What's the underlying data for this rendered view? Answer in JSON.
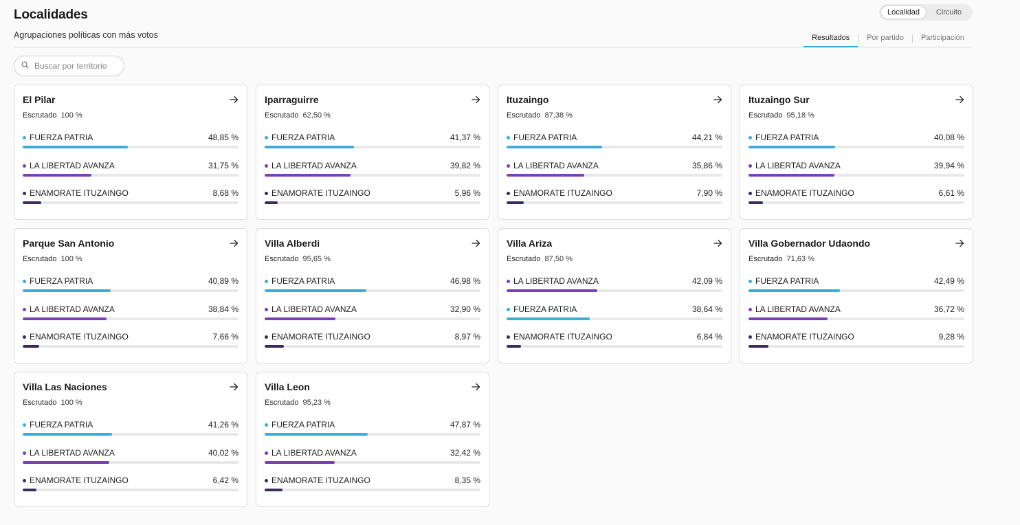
{
  "header": {
    "title": "Localidades",
    "subtitle": "Agrupaciones políticas con más votos",
    "toggle": [
      {
        "label": "Localidad",
        "active": true
      },
      {
        "label": "Circuito",
        "active": false
      }
    ],
    "tabs": [
      {
        "label": "Resultados",
        "active": true
      },
      {
        "label": "Por partido",
        "active": false
      },
      {
        "label": "Participación",
        "active": false
      }
    ]
  },
  "search": {
    "placeholder": "Buscar por territorio",
    "icon": "search-icon"
  },
  "scrutinized_label": "Escrutado",
  "party_colors": {
    "FUERZA PATRIA": "#3aaed8",
    "LA LIBERTAD AVANZA": "#7b3fb8",
    "ENAMORATE ITUZAINGO": "#3c2a5c"
  },
  "cards": [
    {
      "name": "El Pilar",
      "scrutinized": "100 %",
      "parties": [
        {
          "name": "FUERZA PATRIA",
          "pct": "48,85 %",
          "value": 48.85
        },
        {
          "name": "LA LIBERTAD AVANZA",
          "pct": "31,75 %",
          "value": 31.75
        },
        {
          "name": "ENAMORATE ITUZAINGO",
          "pct": "8,68 %",
          "value": 8.68
        }
      ]
    },
    {
      "name": "Iparraguirre",
      "scrutinized": "62,50 %",
      "parties": [
        {
          "name": "FUERZA PATRIA",
          "pct": "41,37 %",
          "value": 41.37
        },
        {
          "name": "LA LIBERTAD AVANZA",
          "pct": "39,82 %",
          "value": 39.82
        },
        {
          "name": "ENAMORATE ITUZAINGO",
          "pct": "5,96 %",
          "value": 5.96
        }
      ]
    },
    {
      "name": "Ituzaingo",
      "scrutinized": "87,38 %",
      "parties": [
        {
          "name": "FUERZA PATRIA",
          "pct": "44,21 %",
          "value": 44.21
        },
        {
          "name": "LA LIBERTAD AVANZA",
          "pct": "35,86 %",
          "value": 35.86
        },
        {
          "name": "ENAMORATE ITUZAINGO",
          "pct": "7,90 %",
          "value": 7.9
        }
      ]
    },
    {
      "name": "Ituzaingo Sur",
      "scrutinized": "95,18 %",
      "parties": [
        {
          "name": "FUERZA PATRIA",
          "pct": "40,08 %",
          "value": 40.08
        },
        {
          "name": "LA LIBERTAD AVANZA",
          "pct": "39,94 %",
          "value": 39.94
        },
        {
          "name": "ENAMORATE ITUZAINGO",
          "pct": "6,61 %",
          "value": 6.61
        }
      ]
    },
    {
      "name": "Parque San Antonio",
      "scrutinized": "100 %",
      "parties": [
        {
          "name": "FUERZA PATRIA",
          "pct": "40,89 %",
          "value": 40.89
        },
        {
          "name": "LA LIBERTAD AVANZA",
          "pct": "38,84 %",
          "value": 38.84
        },
        {
          "name": "ENAMORATE ITUZAINGO",
          "pct": "7,66 %",
          "value": 7.66
        }
      ]
    },
    {
      "name": "Villa Alberdi",
      "scrutinized": "95,65 %",
      "parties": [
        {
          "name": "FUERZA PATRIA",
          "pct": "46,98 %",
          "value": 46.98
        },
        {
          "name": "LA LIBERTAD AVANZA",
          "pct": "32,90 %",
          "value": 32.9
        },
        {
          "name": "ENAMORATE ITUZAINGO",
          "pct": "8,97 %",
          "value": 8.97
        }
      ]
    },
    {
      "name": "Villa Ariza",
      "scrutinized": "87,50 %",
      "parties": [
        {
          "name": "LA LIBERTAD AVANZA",
          "pct": "42,09 %",
          "value": 42.09
        },
        {
          "name": "FUERZA PATRIA",
          "pct": "38,64 %",
          "value": 38.64
        },
        {
          "name": "ENAMORATE ITUZAINGO",
          "pct": "6,84 %",
          "value": 6.84
        }
      ]
    },
    {
      "name": "Villa Gobernador Udaondo",
      "scrutinized": "71,63 %",
      "parties": [
        {
          "name": "FUERZA PATRIA",
          "pct": "42,49 %",
          "value": 42.49
        },
        {
          "name": "LA LIBERTAD AVANZA",
          "pct": "36,72 %",
          "value": 36.72
        },
        {
          "name": "ENAMORATE ITUZAINGO",
          "pct": "9,28 %",
          "value": 9.28
        }
      ]
    },
    {
      "name": "Villa Las Naciones",
      "scrutinized": "100 %",
      "parties": [
        {
          "name": "FUERZA PATRIA",
          "pct": "41,26 %",
          "value": 41.26
        },
        {
          "name": "LA LIBERTAD AVANZA",
          "pct": "40,02 %",
          "value": 40.02
        },
        {
          "name": "ENAMORATE ITUZAINGO",
          "pct": "6,42 %",
          "value": 6.42
        }
      ]
    },
    {
      "name": "Villa Leon",
      "scrutinized": "95,23 %",
      "parties": [
        {
          "name": "FUERZA PATRIA",
          "pct": "47,87 %",
          "value": 47.87
        },
        {
          "name": "LA LIBERTAD AVANZA",
          "pct": "32,42 %",
          "value": 32.42
        },
        {
          "name": "ENAMORATE ITUZAINGO",
          "pct": "8,35 %",
          "value": 8.35
        }
      ]
    }
  ]
}
